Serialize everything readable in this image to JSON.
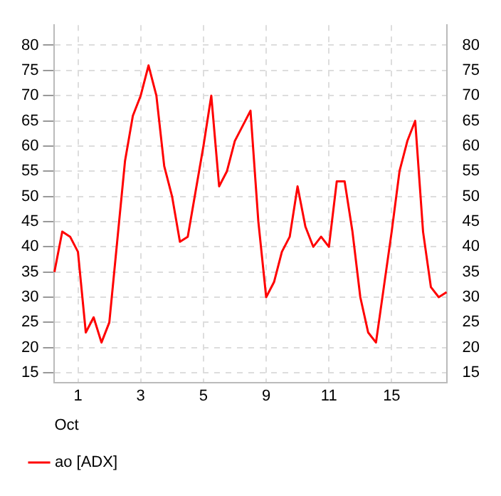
{
  "chart_data": {
    "type": "line",
    "xlabel": "Oct",
    "categories": [
      null,
      null,
      null,
      "1",
      null,
      null,
      null,
      null,
      null,
      null,
      null,
      "3",
      null,
      null,
      null,
      null,
      null,
      null,
      null,
      "5",
      null,
      null,
      null,
      null,
      null,
      null,
      null,
      "9",
      null,
      null,
      null,
      null,
      null,
      null,
      null,
      "11",
      null,
      null,
      null,
      null,
      null,
      null,
      null,
      "15",
      null,
      null,
      null,
      null,
      null,
      null,
      null
    ],
    "series": [
      {
        "name": "ао [ADX]",
        "color": "#ff0000",
        "values": [
          35,
          43,
          42,
          39,
          23,
          26,
          21,
          25,
          41,
          57,
          66,
          70,
          76,
          70,
          56,
          50,
          41,
          42,
          51,
          60,
          70,
          52,
          55,
          61,
          64,
          67,
          45,
          30,
          33,
          39,
          42,
          52,
          44,
          40,
          42,
          40,
          53,
          53,
          43,
          30,
          23,
          21,
          32,
          43,
          55,
          61,
          65,
          43,
          32,
          30,
          31
        ]
      }
    ],
    "ylim": [
      13,
      84
    ],
    "yticks": [
      15,
      20,
      25,
      30,
      35,
      40,
      45,
      50,
      55,
      60,
      65,
      70,
      75,
      80
    ],
    "y2lim": [
      13,
      84
    ],
    "y2ticks": [
      15,
      20,
      25,
      30,
      35,
      40,
      45,
      50,
      55,
      60,
      65,
      70,
      75,
      80
    ],
    "grid": true,
    "legend": "bottom left",
    "marker": "none",
    "line_style": "solid"
  }
}
